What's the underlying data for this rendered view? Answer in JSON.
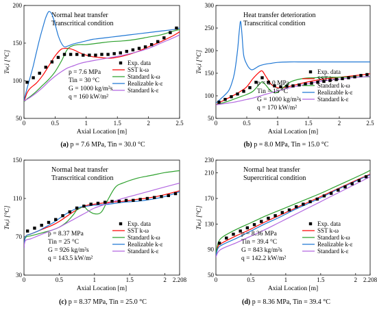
{
  "series_styles": [
    {
      "key": "exp",
      "name": "Exp. data",
      "color": "#000000",
      "kind": "marker"
    },
    {
      "key": "sst",
      "name": "SST k-ω",
      "color": "#ff0000",
      "kind": "line"
    },
    {
      "key": "std_kw",
      "name": "Standard k-ω",
      "color": "#2ca02c",
      "kind": "line"
    },
    {
      "key": "real_ke",
      "name": "Realizable k-ε",
      "color": "#1f77d4",
      "kind": "line"
    },
    {
      "key": "std_ke",
      "name": "Standard k-ε",
      "color": "#b266e0",
      "kind": "line"
    }
  ],
  "chart_data": [
    {
      "id": "a",
      "type": "line",
      "caption": {
        "label": "(a)",
        "text": "p = 7.6 MPa, Tin = 30.0 °C"
      },
      "title_lines": [
        "Normal heat transfer",
        "Transcritical condition"
      ],
      "xlabel": "Axial Location [m]",
      "ylabel": "Tw,i [°C]",
      "xlim": [
        0,
        2.5
      ],
      "ylim": [
        50,
        200
      ],
      "xticks": [
        "0",
        "0.5",
        "1",
        "1.5",
        "2",
        "2.5"
      ],
      "yticks": [
        "50",
        "100",
        "150",
        "200"
      ],
      "conditions": [
        "p = 7.6 MPa",
        "Tin = 30 °C",
        "G = 1000 kg/m²s",
        "q = 160 kW/m²"
      ],
      "series": [
        {
          "key": "exp",
          "x": [
            0.05,
            0.15,
            0.25,
            0.35,
            0.45,
            0.55,
            0.65,
            0.75,
            0.85,
            0.95,
            1.05,
            1.15,
            1.25,
            1.35,
            1.45,
            1.55,
            1.65,
            1.75,
            1.85,
            1.95,
            2.05,
            2.15,
            2.25,
            2.35,
            2.45
          ],
          "y": [
            98,
            104,
            110,
            118,
            125,
            131,
            135,
            135,
            135,
            134,
            134,
            134,
            135,
            135,
            136,
            137,
            139,
            141,
            143,
            145,
            148,
            152,
            157,
            164,
            170
          ]
        },
        {
          "key": "sst",
          "x": [
            0,
            0.05,
            0.1,
            0.2,
            0.3,
            0.4,
            0.5,
            0.6,
            0.7,
            0.8,
            0.9,
            1.0,
            1.1,
            1.2,
            1.4,
            1.6,
            1.8,
            2.0,
            2.2,
            2.4,
            2.5
          ],
          "y": [
            72,
            84,
            90,
            97,
            107,
            120,
            133,
            142,
            143,
            141,
            137,
            134,
            132,
            131,
            130,
            133,
            138,
            145,
            152,
            160,
            165
          ]
        },
        {
          "key": "std_kw",
          "x": [
            0,
            0.05,
            0.1,
            0.2,
            0.3,
            0.4,
            0.5,
            0.6,
            0.7,
            0.8,
            0.9,
            1.0,
            1.2,
            1.4,
            1.6,
            1.8,
            2.0,
            2.2,
            2.4,
            2.5
          ],
          "y": [
            72,
            76,
            79,
            86,
            94,
            102,
            112,
            126,
            142,
            147,
            148,
            148,
            150,
            152,
            153,
            155,
            158,
            161,
            166,
            168
          ]
        },
        {
          "key": "real_ke",
          "x": [
            0,
            0.05,
            0.1,
            0.15,
            0.2,
            0.25,
            0.3,
            0.35,
            0.4,
            0.45,
            0.5,
            0.55,
            0.6,
            0.65,
            0.7,
            0.8,
            0.9,
            1.0,
            1.1,
            1.2,
            1.4,
            1.6,
            1.8,
            2.0,
            2.2,
            2.4,
            2.5
          ],
          "y": [
            74,
            90,
            105,
            120,
            138,
            155,
            170,
            184,
            192,
            188,
            175,
            160,
            150,
            145,
            146,
            149,
            151,
            153,
            155,
            156,
            158,
            160,
            162,
            164,
            166,
            168,
            170
          ]
        },
        {
          "key": "std_ke",
          "x": [
            0,
            0.1,
            0.2,
            0.3,
            0.4,
            0.5,
            0.6,
            0.7,
            0.8,
            0.9,
            1.0,
            1.2,
            1.4,
            1.6,
            1.8,
            2.0,
            2.2,
            2.4,
            2.5
          ],
          "y": [
            73,
            78,
            84,
            91,
            99,
            106,
            112,
            117,
            120,
            123,
            125,
            128,
            131,
            134,
            138,
            143,
            150,
            157,
            161
          ]
        }
      ]
    },
    {
      "id": "b",
      "type": "line",
      "caption": {
        "label": "(b)",
        "text": "p = 8.0 MPa, Tin = 15.0 °C"
      },
      "title_lines": [
        "Heat transfer deterioration",
        "Transcritical condition"
      ],
      "xlabel": "Axial Location [m]",
      "ylabel": "Tw,i [°C]",
      "xlim": [
        0,
        2.5
      ],
      "ylim": [
        50,
        300
      ],
      "xticks": [
        "0",
        "0.5",
        "1",
        "1.5",
        "2",
        "2.5"
      ],
      "yticks": [
        "50",
        "100",
        "150",
        "200",
        "250",
        "300"
      ],
      "conditions": [
        "p = 8.0 MPa",
        "Tin = 15 °C",
        "G = 1000 kg/m²s",
        "q = 170 kW/m²"
      ],
      "series": [
        {
          "key": "exp",
          "x": [
            0.05,
            0.15,
            0.25,
            0.35,
            0.45,
            0.55,
            0.65,
            0.75,
            0.85,
            0.95,
            1.05,
            1.15,
            1.25,
            1.35,
            1.45,
            1.55,
            1.65,
            1.75,
            1.85,
            1.95,
            2.05,
            2.15,
            2.25,
            2.35,
            2.45
          ],
          "y": [
            86,
            92,
            98,
            104,
            110,
            118,
            130,
            140,
            130,
            122,
            120,
            121,
            122,
            124,
            126,
            128,
            130,
            132,
            134,
            136,
            138,
            140,
            142,
            145,
            147
          ]
        },
        {
          "key": "sst",
          "x": [
            0,
            0.1,
            0.2,
            0.3,
            0.4,
            0.5,
            0.6,
            0.7,
            0.75,
            0.8,
            0.9,
            1.0,
            1.1,
            1.2,
            1.4,
            1.6,
            1.8,
            2.0,
            2.2,
            2.4,
            2.5
          ],
          "y": [
            80,
            88,
            95,
            102,
            110,
            120,
            138,
            152,
            155,
            145,
            125,
            118,
            118,
            121,
            128,
            134,
            138,
            141,
            144,
            147,
            149
          ]
        },
        {
          "key": "std_kw",
          "x": [
            0,
            0.1,
            0.2,
            0.3,
            0.4,
            0.5,
            0.6,
            0.7,
            0.75,
            0.8,
            0.9,
            1.0,
            1.2,
            1.4,
            1.6,
            1.8,
            2.0,
            2.2,
            2.4,
            2.5
          ],
          "y": [
            80,
            84,
            88,
            93,
            98,
            103,
            110,
            125,
            131,
            125,
            110,
            108,
            130,
            138,
            140,
            141,
            141,
            142,
            142,
            142
          ]
        },
        {
          "key": "real_ke",
          "x": [
            0,
            0.1,
            0.2,
            0.25,
            0.3,
            0.35,
            0.38,
            0.4,
            0.42,
            0.45,
            0.5,
            0.55,
            0.6,
            0.7,
            0.8,
            0.9,
            1.0,
            1.2,
            1.4,
            1.6,
            1.8,
            2.0,
            2.2,
            2.4,
            2.5
          ],
          "y": [
            84,
            96,
            110,
            125,
            150,
            200,
            245,
            265,
            240,
            190,
            170,
            160,
            158,
            166,
            170,
            172,
            174,
            175,
            175,
            175,
            175,
            175,
            175,
            175,
            175
          ]
        },
        {
          "key": "std_ke",
          "x": [
            0,
            0.1,
            0.2,
            0.3,
            0.4,
            0.5,
            0.6,
            0.7,
            0.8,
            0.9,
            1.0,
            1.2,
            1.4,
            1.6,
            1.8,
            2.0,
            2.2,
            2.4,
            2.5
          ],
          "y": [
            80,
            82,
            84,
            86,
            89,
            92,
            95,
            99,
            103,
            107,
            111,
            118,
            124,
            130,
            134,
            137,
            140,
            142,
            143
          ]
        }
      ]
    },
    {
      "id": "c",
      "type": "line",
      "caption": {
        "label": "(c)",
        "text": "p = 8.37 MPa, Tin = 25.0 °C"
      },
      "title_lines": [
        "Normal heat transfer",
        "Transcritical condition"
      ],
      "xlabel": "Axial Location [m]",
      "ylabel": "Tw,i [°C]",
      "xlim": [
        0,
        2.208
      ],
      "ylim": [
        30,
        150
      ],
      "xticks": [
        "0",
        "0.5",
        "1",
        "1.5",
        "2",
        "2.208"
      ],
      "xtick_values": [
        0,
        0.5,
        1,
        1.5,
        2,
        2.208
      ],
      "yticks": [
        "30",
        "70",
        "110",
        "150"
      ],
      "conditions": [
        "p = 8.37 MPa",
        "Tin = 25 °C",
        "G = 926 kg/m²s",
        "q = 143.5 kW/m²"
      ],
      "series": [
        {
          "key": "exp",
          "x": [
            0.05,
            0.15,
            0.25,
            0.35,
            0.45,
            0.55,
            0.65,
            0.75,
            0.85,
            0.95,
            1.05,
            1.15,
            1.25,
            1.35,
            1.45,
            1.55,
            1.65,
            1.75,
            1.85,
            1.95,
            2.05,
            2.15
          ],
          "y": [
            76,
            79,
            82,
            85,
            88,
            92,
            96,
            100,
            102,
            104,
            105,
            106,
            107,
            107,
            108,
            108,
            109,
            110,
            111,
            112,
            113,
            115
          ]
        },
        {
          "key": "sst",
          "x": [
            0,
            0.02,
            0.1,
            0.2,
            0.3,
            0.4,
            0.5,
            0.6,
            0.7,
            0.8,
            0.9,
            1.0,
            1.2,
            1.4,
            1.6,
            1.8,
            2.0,
            2.208
          ],
          "y": [
            58,
            70,
            73,
            76,
            79,
            82,
            86,
            91,
            96,
            100,
            103,
            104,
            106,
            107,
            109,
            111,
            114,
            118
          ]
        },
        {
          "key": "std_kw",
          "x": [
            0,
            0.02,
            0.1,
            0.2,
            0.3,
            0.4,
            0.5,
            0.6,
            0.7,
            0.75,
            0.8,
            0.85,
            0.9,
            1.0,
            1.1,
            1.2,
            1.3,
            1.4,
            1.6,
            1.8,
            2.0,
            2.208
          ],
          "y": [
            58,
            69,
            71,
            73,
            75,
            77,
            80,
            85,
            93,
            98,
            100,
            102,
            98,
            94,
            96,
            110,
            122,
            126,
            131,
            134,
            137,
            139
          ]
        },
        {
          "key": "real_ke",
          "x": [
            0,
            0.02,
            0.1,
            0.2,
            0.3,
            0.4,
            0.5,
            0.6,
            0.7,
            0.8,
            0.9,
            1.0,
            1.2,
            1.4,
            1.6,
            1.8,
            2.0,
            2.208
          ],
          "y": [
            58,
            70,
            73,
            76,
            80,
            84,
            89,
            94,
            98,
            101,
            102,
            103,
            104,
            106,
            107,
            109,
            112,
            117
          ]
        },
        {
          "key": "std_ke",
          "x": [
            0,
            0.02,
            0.1,
            0.2,
            0.3,
            0.4,
            0.5,
            0.6,
            0.7,
            0.8,
            0.9,
            1.0,
            1.2,
            1.4,
            1.6,
            1.8,
            2.0,
            2.208
          ],
          "y": [
            58,
            66,
            68,
            71,
            74,
            77,
            80,
            84,
            88,
            92,
            96,
            100,
            105,
            110,
            114,
            118,
            122,
            126
          ]
        }
      ]
    },
    {
      "id": "d",
      "type": "line",
      "caption": {
        "label": "(d)",
        "text": "p = 8.36 MPa, Tin = 39.4 °C"
      },
      "title_lines": [
        "Normal heat transfer",
        "Supercritical condition"
      ],
      "xlabel": "Axial Location [m]",
      "ylabel": "Tw,i [°C]",
      "xlim": [
        0,
        2.208
      ],
      "ylim": [
        50,
        230
      ],
      "xticks": [
        "0",
        "0.5",
        "1",
        "1.5",
        "2",
        "2.208"
      ],
      "xtick_values": [
        0,
        0.5,
        1,
        1.5,
        2,
        2.208
      ],
      "yticks": [
        "50",
        "90",
        "130",
        "170",
        "210",
        "230"
      ],
      "ytick_values": [
        50,
        90,
        130,
        170,
        210,
        230
      ],
      "conditions": [
        "p = 8.36 MPa",
        "Tin = 39.4 °C",
        "G = 843 kg/m²s",
        "q = 142.2 kW/m²"
      ],
      "series": [
        {
          "key": "exp",
          "x": [
            0.05,
            0.15,
            0.25,
            0.35,
            0.45,
            0.55,
            0.65,
            0.75,
            0.85,
            0.95,
            1.05,
            1.15,
            1.25,
            1.35,
            1.45,
            1.55,
            1.65,
            1.75,
            1.85,
            1.95,
            2.05,
            2.15
          ],
          "y": [
            100,
            108,
            114,
            119,
            124,
            129,
            134,
            139,
            143,
            148,
            152,
            157,
            161,
            165,
            169,
            174,
            178,
            183,
            188,
            193,
            198,
            204
          ]
        },
        {
          "key": "sst",
          "x": [
            0,
            0.03,
            0.1,
            0.3,
            0.5,
            0.7,
            0.9,
            1.1,
            1.3,
            1.5,
            1.7,
            1.9,
            2.1,
            2.208
          ],
          "y": [
            80,
            95,
            101,
            112,
            122,
            133,
            143,
            153,
            163,
            173,
            183,
            193,
            203,
            208
          ]
        },
        {
          "key": "std_kw",
          "x": [
            0,
            0.03,
            0.1,
            0.3,
            0.5,
            0.7,
            0.9,
            1.1,
            1.3,
            1.5,
            1.7,
            1.9,
            2.1,
            2.208
          ],
          "y": [
            82,
            100,
            110,
            122,
            132,
            142,
            151,
            160,
            169,
            178,
            188,
            198,
            208,
            214
          ]
        },
        {
          "key": "real_ke",
          "x": [
            0,
            0.03,
            0.1,
            0.3,
            0.5,
            0.7,
            0.9,
            1.1,
            1.3,
            1.5,
            1.7,
            1.9,
            2.1,
            2.208
          ],
          "y": [
            80,
            92,
            98,
            108,
            119,
            130,
            140,
            151,
            161,
            171,
            182,
            192,
            202,
            207
          ]
        },
        {
          "key": "std_ke",
          "x": [
            0,
            0.03,
            0.1,
            0.3,
            0.5,
            0.7,
            0.9,
            1.1,
            1.3,
            1.5,
            1.7,
            1.9,
            2.1,
            2.208
          ],
          "y": [
            78,
            86,
            92,
            101,
            111,
            121,
            132,
            143,
            154,
            165,
            176,
            187,
            198,
            204
          ]
        }
      ]
    }
  ]
}
